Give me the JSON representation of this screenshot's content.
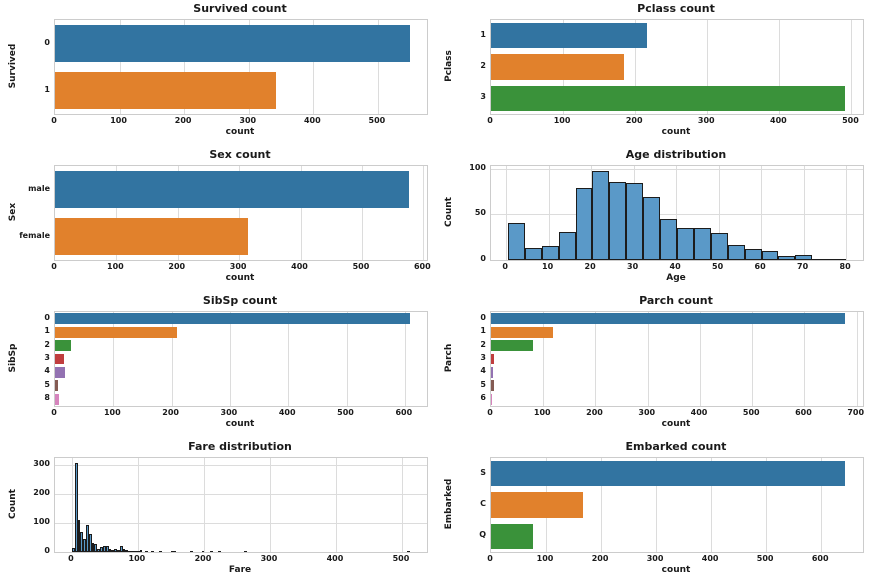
{
  "figure": {
    "background": "#ffffff",
    "grid_color": "#dcdcdc",
    "spine_color": "#cccccc",
    "text_color": "#1a1a1a",
    "hist_fill": "#5a99c8",
    "hist_edge": "#1c1c1c",
    "palette": [
      "#3274a1",
      "#e1812c",
      "#3a923a",
      "#c03d3e",
      "#9372b2",
      "#845b53",
      "#d684bd"
    ]
  },
  "chart_data": [
    {
      "type": "bar",
      "orientation": "horizontal",
      "title": "Survived count",
      "xlabel": "count",
      "ylabel": "Survived",
      "categories": [
        "0",
        "1"
      ],
      "values": [
        549,
        342
      ],
      "xticks": [
        0,
        100,
        200,
        300,
        400,
        500
      ],
      "xmax": 576,
      "grid": true,
      "legend": false
    },
    {
      "type": "bar",
      "orientation": "horizontal",
      "title": "Pclass count",
      "xlabel": "count",
      "ylabel": "Pclass",
      "categories": [
        "1",
        "2",
        "3"
      ],
      "values": [
        216,
        184,
        491
      ],
      "xticks": [
        0,
        100,
        200,
        300,
        400,
        500
      ],
      "xmax": 516,
      "grid": true,
      "legend": false
    },
    {
      "type": "bar",
      "orientation": "horizontal",
      "title": "Sex count",
      "xlabel": "count",
      "ylabel": "Sex",
      "categories": [
        "male",
        "female"
      ],
      "values": [
        577,
        314
      ],
      "xticks": [
        0,
        100,
        200,
        300,
        400,
        500,
        600
      ],
      "xmax": 606,
      "grid": true,
      "legend": false
    },
    {
      "type": "histogram",
      "title": "Age distribution",
      "xlabel": "Age",
      "ylabel": "Count",
      "bin_start": 0.42,
      "bin_width": 3.979,
      "values": [
        40,
        13,
        15,
        31,
        79,
        98,
        85,
        84,
        69,
        45,
        35,
        35,
        30,
        16,
        12,
        10,
        4,
        5,
        1,
        1
      ],
      "xticks": [
        0,
        10,
        20,
        30,
        40,
        50,
        60,
        70,
        80
      ],
      "yticks": [
        0,
        50,
        100
      ],
      "xlim": [
        -3.56,
        83.98
      ],
      "ymax": 103,
      "grid": true,
      "legend": false
    },
    {
      "type": "bar",
      "orientation": "horizontal",
      "title": "SibSp count",
      "xlabel": "count",
      "ylabel": "SibSp",
      "categories": [
        "0",
        "1",
        "2",
        "3",
        "4",
        "5",
        "8"
      ],
      "values": [
        608,
        209,
        28,
        16,
        18,
        5,
        7
      ],
      "xticks": [
        0,
        100,
        200,
        300,
        400,
        500,
        600
      ],
      "xmax": 638,
      "grid": true,
      "legend": false
    },
    {
      "type": "bar",
      "orientation": "horizontal",
      "title": "Parch count",
      "xlabel": "count",
      "ylabel": "Parch",
      "categories": [
        "0",
        "1",
        "2",
        "3",
        "4",
        "5",
        "6"
      ],
      "values": [
        678,
        118,
        80,
        5,
        4,
        5,
        1
      ],
      "xticks": [
        0,
        100,
        200,
        300,
        400,
        500,
        600,
        700
      ],
      "xmax": 712,
      "grid": true,
      "legend": false
    },
    {
      "type": "histogram",
      "title": "Fare distribution",
      "xlabel": "Fare",
      "ylabel": "Count",
      "bin_start": 0,
      "bin_width": 4.27,
      "values": [
        15,
        310,
        112,
        70,
        45,
        95,
        62,
        30,
        28,
        12,
        18,
        20,
        20,
        10,
        8,
        10,
        8,
        20,
        10,
        6,
        5,
        4,
        3,
        4,
        6,
        0,
        5,
        0,
        4,
        0,
        0,
        4,
        0,
        0,
        0,
        5,
        3,
        0,
        0,
        0,
        0,
        0,
        2,
        0,
        0,
        0,
        4,
        0,
        0,
        4,
        0,
        0,
        3,
        0,
        0,
        0,
        0,
        0,
        0,
        0,
        0,
        4,
        0,
        0,
        0,
        0,
        0,
        0,
        0,
        0,
        0,
        0,
        0,
        0,
        0,
        0,
        0,
        0,
        0,
        0,
        0,
        0,
        0,
        0,
        0,
        0,
        0,
        0,
        0,
        0,
        0,
        0,
        0,
        0,
        0,
        0,
        0,
        0,
        0,
        0,
        0,
        0,
        0,
        0,
        0,
        0,
        0,
        0,
        0,
        0,
        0,
        0,
        0,
        0,
        0,
        0,
        0,
        0,
        0,
        3
      ],
      "xticks": [
        0,
        100,
        200,
        300,
        400,
        500
      ],
      "yticks": [
        0,
        100,
        200,
        300
      ],
      "xlim": [
        -25.6,
        537.9
      ],
      "ymax": 326,
      "grid": true,
      "legend": false
    },
    {
      "type": "bar",
      "orientation": "horizontal",
      "title": "Embarked count",
      "xlabel": "count",
      "ylabel": "Embarked",
      "categories": [
        "S",
        "C",
        "Q"
      ],
      "values": [
        644,
        168,
        77
      ],
      "xticks": [
        0,
        100,
        200,
        300,
        400,
        500,
        600
      ],
      "xmax": 676,
      "grid": true,
      "legend": false
    }
  ]
}
